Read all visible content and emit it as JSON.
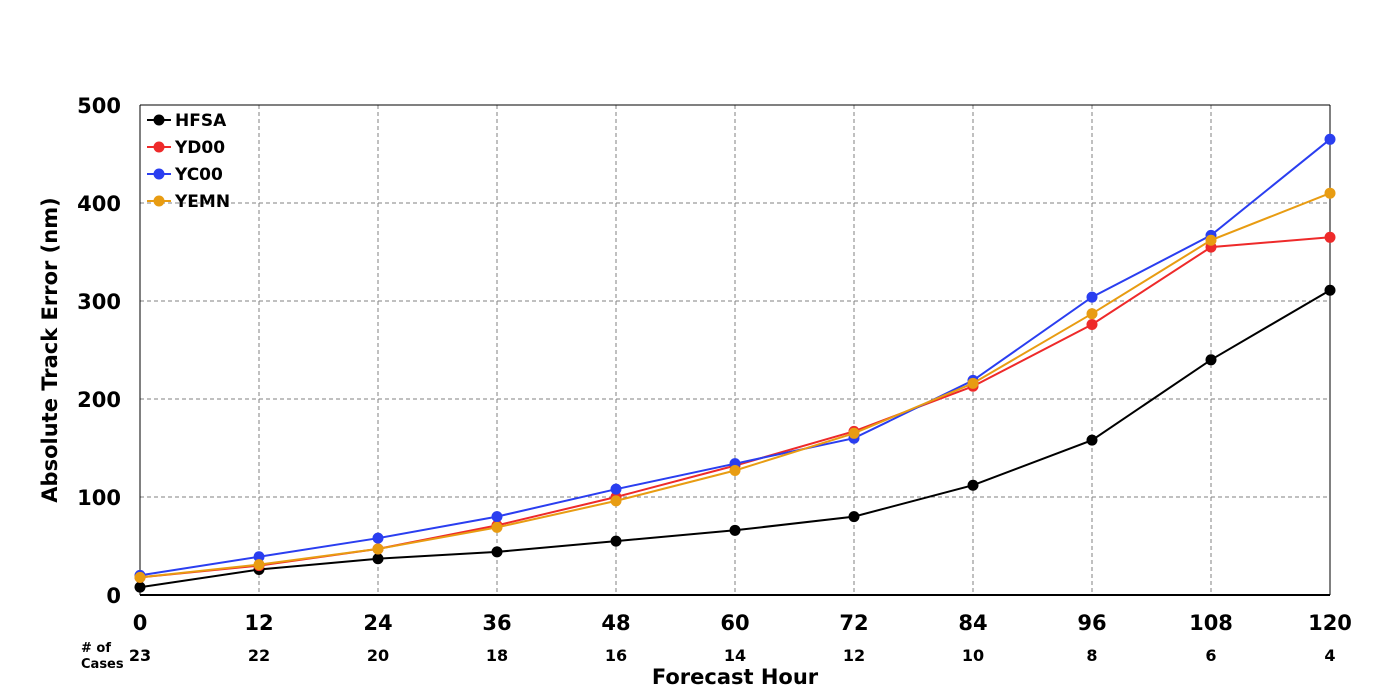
{
  "chart_data": {
    "type": "line",
    "title": "",
    "xlabel": "Forecast Hour",
    "ylabel": "Absolute Track Error (nm)",
    "x": [
      0,
      12,
      24,
      36,
      48,
      60,
      72,
      84,
      96,
      108,
      120
    ],
    "x_tick_labels": [
      "0",
      "12",
      "24",
      "36",
      "48",
      "60",
      "72",
      "84",
      "96",
      "108",
      "120"
    ],
    "xlim": [
      0,
      120
    ],
    "ylim": [
      0,
      500
    ],
    "y_ticks": [
      0,
      100,
      200,
      300,
      400,
      500
    ],
    "y_tick_labels": [
      "0",
      "100",
      "200",
      "300",
      "400",
      "500"
    ],
    "grid": true,
    "legend_position": "top-left",
    "cases_header": [
      "# of",
      "Cases"
    ],
    "cases": [
      "23",
      "22",
      "20",
      "18",
      "16",
      "14",
      "12",
      "10",
      "8",
      "6",
      "4"
    ],
    "series": [
      {
        "name": "HFSA",
        "color": "#000000",
        "values": [
          8,
          26,
          37,
          44,
          55,
          66,
          80,
          112,
          158,
          240,
          311
        ]
      },
      {
        "name": "YD00",
        "color": "#ee2a2a",
        "values": [
          18,
          30,
          47,
          71,
          100,
          132,
          167,
          213,
          276,
          355,
          365
        ]
      },
      {
        "name": "YC00",
        "color": "#2a3ef0",
        "values": [
          20,
          39,
          58,
          80,
          108,
          134,
          160,
          219,
          304,
          367,
          465
        ]
      },
      {
        "name": "YEMN",
        "color": "#e89c12",
        "values": [
          18,
          31,
          47,
          69,
          96,
          127,
          165,
          216,
          287,
          362,
          410
        ]
      }
    ]
  }
}
